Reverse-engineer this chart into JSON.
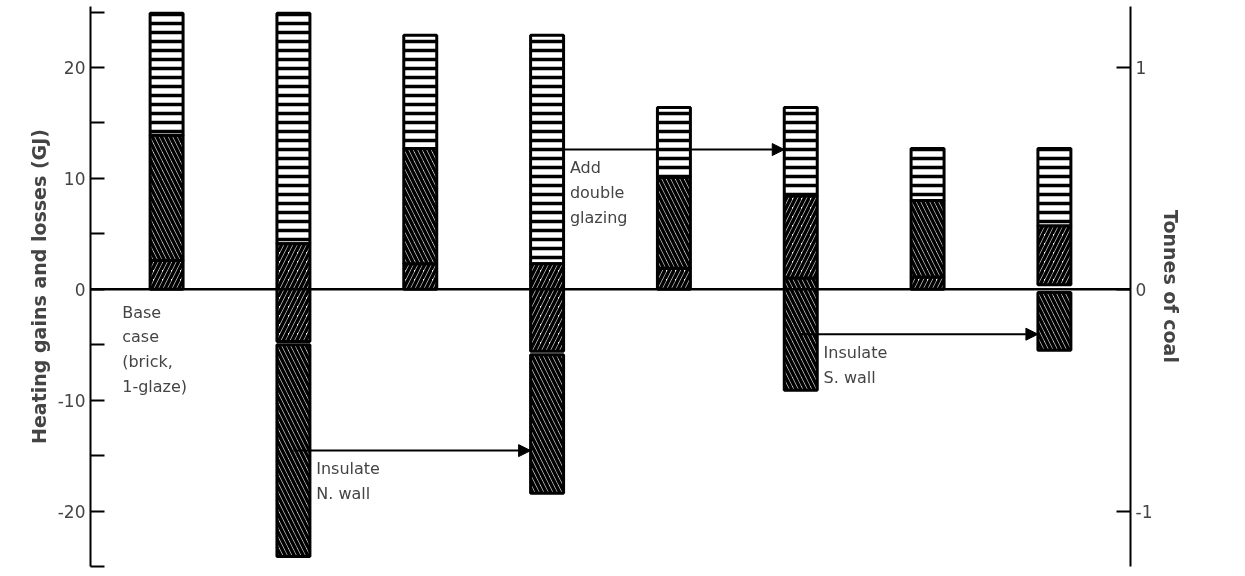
{
  "chart_data": {
    "type": "bar",
    "ylabel": "Heating gains and losses (GJ)",
    "y2label": "Tonnes of coal",
    "categories": [
      null,
      null,
      null,
      null,
      null,
      null,
      null,
      null
    ],
    "series": [
      {
        "color": "#000000",
        "base": [
          0,
          null,
          0,
          null,
          0,
          null,
          0,
          null
        ],
        "values": [
          2.6,
          null,
          2.3,
          null,
          1.9,
          null,
          1.1,
          null
        ]
      },
      {
        "color": "#000000",
        "base": [
          2.6,
          null,
          2.3,
          null,
          1.9,
          null,
          1.1,
          null
        ],
        "values": [
          11.3,
          null,
          10.4,
          null,
          8.2,
          null,
          6.9,
          null
        ]
      },
      {
        "color": "#000000",
        "base": [
          13.9,
          null,
          12.7,
          null,
          10.1,
          null,
          8.0,
          null
        ],
        "values": [
          11.0,
          null,
          10.2,
          null,
          6.3,
          null,
          4.7,
          null
        ]
      },
      {
        "color": "#000000",
        "base": [
          null,
          24.9,
          null,
          22.9,
          null,
          16.4,
          null,
          12.7
        ],
        "values": [
          null,
          -20.8,
          null,
          -20.6,
          null,
          -8.0,
          null,
          -7.0
        ]
      },
      {
        "color": "#000000",
        "base": [
          null,
          4.1,
          null,
          2.3,
          null,
          8.4,
          null,
          5.7
        ],
        "values": [
          null,
          -8.8,
          null,
          -7.9,
          null,
          -7.4,
          null,
          -5.3
        ]
      },
      {
        "color": "#000000",
        "base": [
          null,
          -5.0,
          null,
          -5.9,
          null,
          1.0,
          null,
          -0.3
        ],
        "values": [
          null,
          -19.1,
          null,
          -12.5,
          null,
          -10.1,
          null,
          -5.2
        ]
      }
    ],
    "ylim": [
      -25,
      25.5
    ],
    "yticks": [
      {
        "value": -25,
        "label": null
      },
      -20,
      {
        "value": -15,
        "label": null
      },
      -10,
      {
        "value": -5,
        "label": null
      },
      0,
      {
        "value": 5,
        "label": null
      },
      10,
      {
        "value": 15,
        "label": null
      },
      20,
      {
        "value": 25,
        "label": null
      }
    ],
    "y2lim": [
      -1.25,
      1.275
    ],
    "y2ticks": [
      -1,
      0,
      1
    ],
    "ref_lines": [
      {
        "axis": "y",
        "value": 0,
        "label": null
      }
    ],
    "annotations": [
      "Base\ncase\n(brick,\n1-glaze)",
      "Insulate\nN. wall",
      "Add\ndouble\nglazing",
      "Insulate\nS. wall"
    ],
    "grid": false,
    "tick_labels": "y"
  }
}
